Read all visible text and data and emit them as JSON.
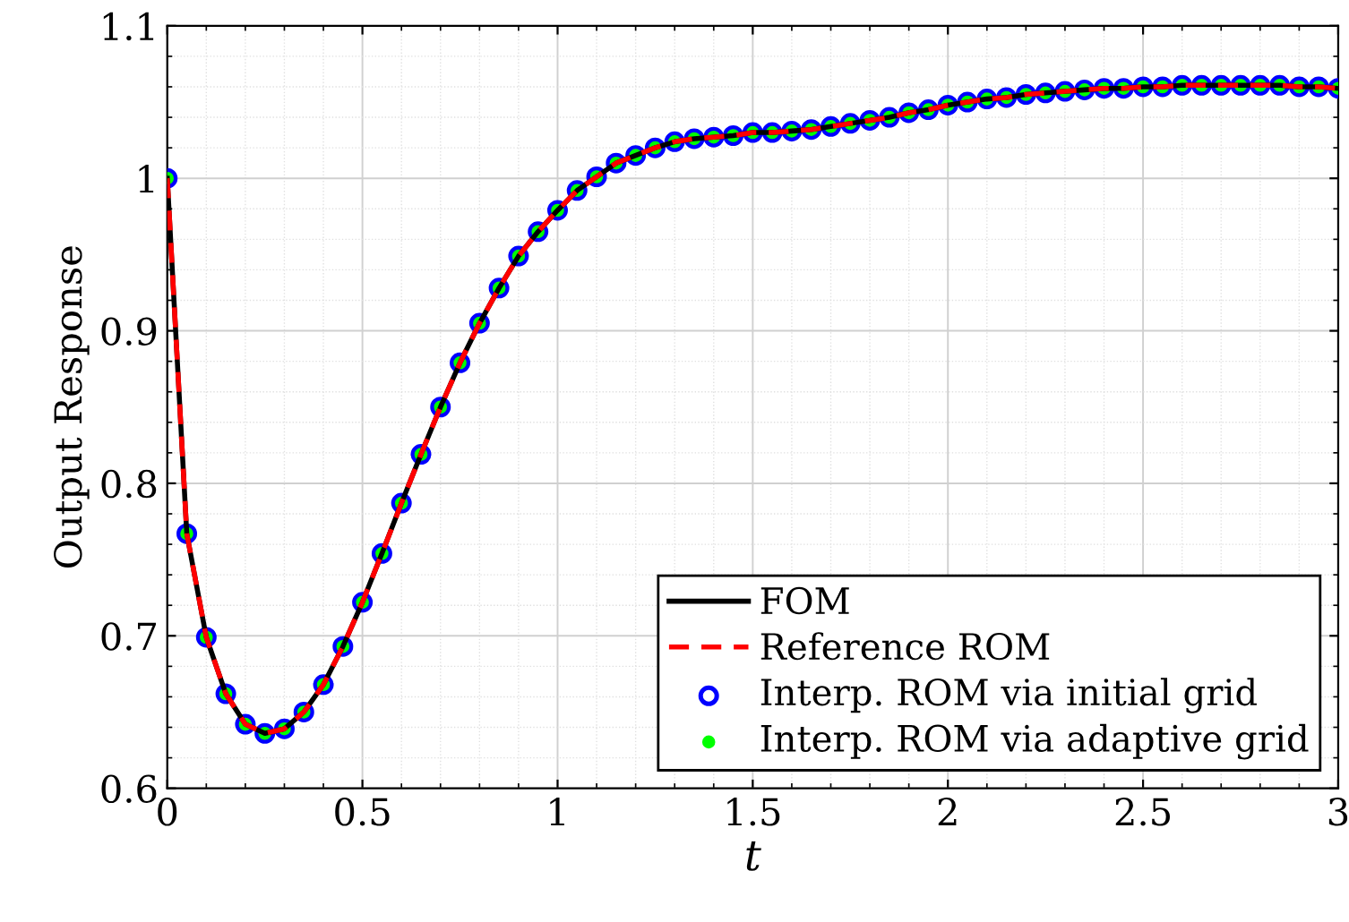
{
  "chart_data": {
    "type": "line",
    "xlabel": "t",
    "ylabel": "Output Response",
    "x": [
      0,
      0.05,
      0.1,
      0.15,
      0.2,
      0.25,
      0.3,
      0.35,
      0.4,
      0.45,
      0.5,
      0.55,
      0.6,
      0.65,
      0.7,
      0.75,
      0.8,
      0.85,
      0.9,
      0.95,
      1.0,
      1.05,
      1.1,
      1.15,
      1.2,
      1.25,
      1.3,
      1.35,
      1.4,
      1.45,
      1.5,
      1.55,
      1.6,
      1.65,
      1.7,
      1.75,
      1.8,
      1.85,
      1.9,
      1.95,
      2.0,
      2.05,
      2.1,
      2.15,
      2.2,
      2.25,
      2.3,
      2.35,
      2.4,
      2.45,
      2.5,
      2.55,
      2.6,
      2.65,
      2.7,
      2.75,
      2.8,
      2.85,
      2.9,
      2.95,
      3.0
    ],
    "series": [
      {
        "name": "FOM",
        "color": "#000000",
        "line_style": "solid",
        "marker": "none",
        "values": [
          1.0,
          0.767,
          0.699,
          0.662,
          0.642,
          0.636,
          0.639,
          0.65,
          0.668,
          0.693,
          0.722,
          0.754,
          0.787,
          0.819,
          0.85,
          0.879,
          0.905,
          0.928,
          0.949,
          0.965,
          0.979,
          0.992,
          1.001,
          1.01,
          1.015,
          1.02,
          1.024,
          1.026,
          1.027,
          1.028,
          1.03,
          1.03,
          1.031,
          1.032,
          1.034,
          1.036,
          1.038,
          1.04,
          1.043,
          1.045,
          1.048,
          1.05,
          1.052,
          1.053,
          1.055,
          1.056,
          1.057,
          1.058,
          1.059,
          1.059,
          1.06,
          1.06,
          1.061,
          1.061,
          1.061,
          1.061,
          1.061,
          1.061,
          1.06,
          1.06,
          1.059
        ]
      },
      {
        "name": "Reference ROM",
        "color": "#ff0000",
        "line_style": "dashed",
        "marker": "none",
        "values": [
          1.0,
          0.767,
          0.699,
          0.662,
          0.642,
          0.636,
          0.639,
          0.65,
          0.668,
          0.693,
          0.722,
          0.754,
          0.787,
          0.819,
          0.85,
          0.879,
          0.905,
          0.928,
          0.949,
          0.965,
          0.979,
          0.992,
          1.001,
          1.01,
          1.015,
          1.02,
          1.024,
          1.026,
          1.027,
          1.028,
          1.03,
          1.03,
          1.031,
          1.032,
          1.034,
          1.036,
          1.038,
          1.04,
          1.043,
          1.045,
          1.048,
          1.05,
          1.052,
          1.053,
          1.055,
          1.056,
          1.057,
          1.058,
          1.059,
          1.059,
          1.06,
          1.06,
          1.061,
          1.061,
          1.061,
          1.061,
          1.061,
          1.061,
          1.06,
          1.06,
          1.059
        ]
      },
      {
        "name": "Interp. ROM via initial grid",
        "type": "scatter",
        "color": "#0000ff",
        "marker": "circle",
        "values": [
          1.0,
          0.767,
          0.699,
          0.662,
          0.642,
          0.636,
          0.639,
          0.65,
          0.668,
          0.693,
          0.722,
          0.754,
          0.787,
          0.819,
          0.85,
          0.879,
          0.905,
          0.928,
          0.949,
          0.965,
          0.979,
          0.992,
          1.001,
          1.01,
          1.015,
          1.02,
          1.024,
          1.026,
          1.027,
          1.028,
          1.03,
          1.03,
          1.031,
          1.032,
          1.034,
          1.036,
          1.038,
          1.04,
          1.043,
          1.045,
          1.048,
          1.05,
          1.052,
          1.053,
          1.055,
          1.056,
          1.057,
          1.058,
          1.059,
          1.059,
          1.06,
          1.06,
          1.061,
          1.061,
          1.061,
          1.061,
          1.061,
          1.061,
          1.06,
          1.06,
          1.059
        ]
      },
      {
        "name": "Interp. ROM via adaptive grid",
        "type": "scatter",
        "color": "#00ff00",
        "marker": "circle",
        "values": [
          1.0,
          0.767,
          0.699,
          0.662,
          0.642,
          0.636,
          0.639,
          0.65,
          0.668,
          0.693,
          0.722,
          0.754,
          0.787,
          0.819,
          0.85,
          0.879,
          0.905,
          0.928,
          0.949,
          0.965,
          0.979,
          0.992,
          1.001,
          1.01,
          1.015,
          1.02,
          1.024,
          1.026,
          1.027,
          1.028,
          1.03,
          1.03,
          1.031,
          1.032,
          1.034,
          1.036,
          1.038,
          1.04,
          1.043,
          1.045,
          1.048,
          1.05,
          1.052,
          1.053,
          1.055,
          1.056,
          1.057,
          1.058,
          1.059,
          1.059,
          1.06,
          1.06,
          1.061,
          1.061,
          1.061,
          1.061,
          1.061,
          1.061,
          1.06,
          1.06,
          1.059
        ]
      }
    ],
    "xlim": [
      0,
      3
    ],
    "xticks": [
      0,
      0.5,
      1,
      1.5,
      2,
      2.5,
      3
    ],
    "ylim": [
      0.6,
      1.1
    ],
    "yticks": [
      0.6,
      0.7,
      0.8,
      0.9,
      1,
      1.1
    ],
    "grid": true,
    "legend": "bottom right"
  }
}
